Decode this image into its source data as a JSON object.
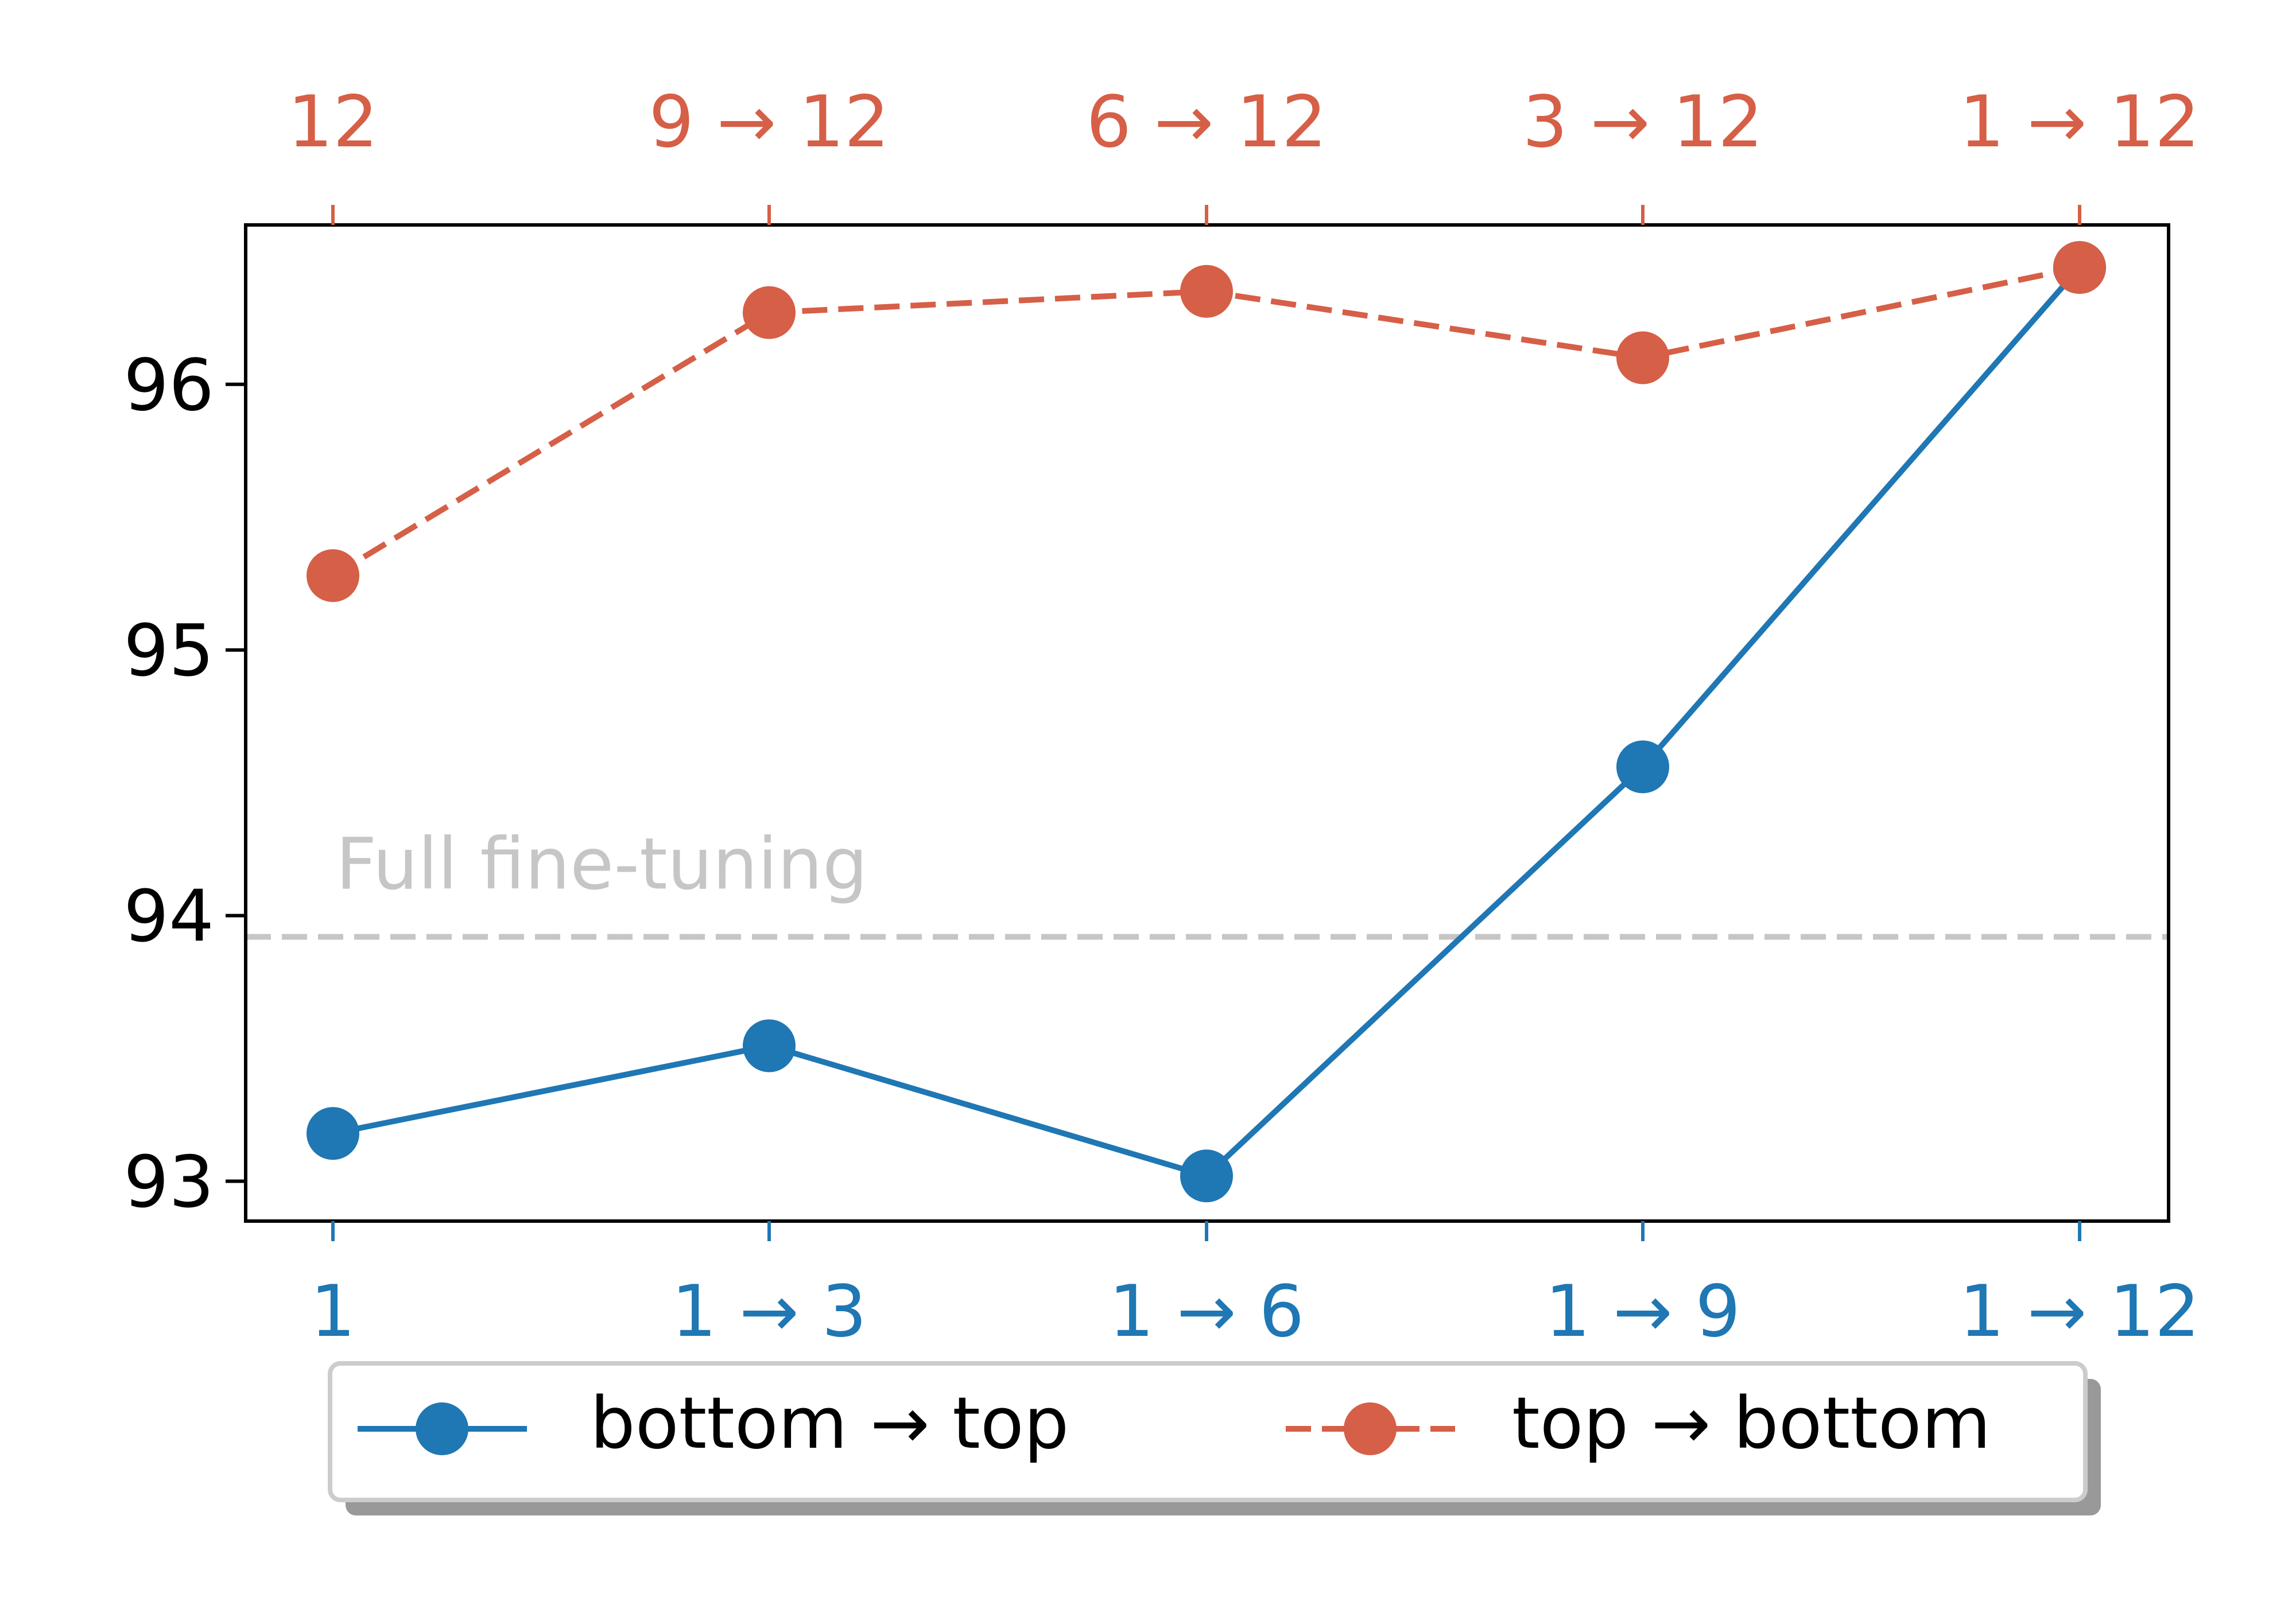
{
  "chart_data": {
    "type": "line",
    "x_bottom_ticks": [
      "1",
      "1 → 3",
      "1 → 6",
      "1 → 9",
      "1 → 12"
    ],
    "x_top_ticks": [
      "12",
      "9 → 12",
      "6 → 12",
      "3 → 12",
      "1 → 12"
    ],
    "y_ticks": [
      93,
      94,
      95,
      96
    ],
    "ylim": [
      92.85,
      96.6
    ],
    "series": [
      {
        "name": "bottom → top",
        "color": "#1f77b4",
        "linestyle": "solid",
        "marker": "circle",
        "values": [
          93.18,
          93.51,
          93.02,
          94.56,
          96.44
        ]
      },
      {
        "name": "top → bottom",
        "color": "#d65f47",
        "linestyle": "dashed",
        "marker": "circle",
        "values": [
          95.28,
          96.27,
          96.35,
          96.1,
          96.44
        ]
      }
    ],
    "reference_line": {
      "label": "Full fine-tuning",
      "value": 93.92,
      "color": "#c6c6c6",
      "linestyle": "dashed"
    },
    "grid": false,
    "legend_position": "bottom-center"
  },
  "colors": {
    "bottom_axis": "#1f77b4",
    "top_axis": "#d65f47",
    "reference": "#c6c6c6"
  }
}
